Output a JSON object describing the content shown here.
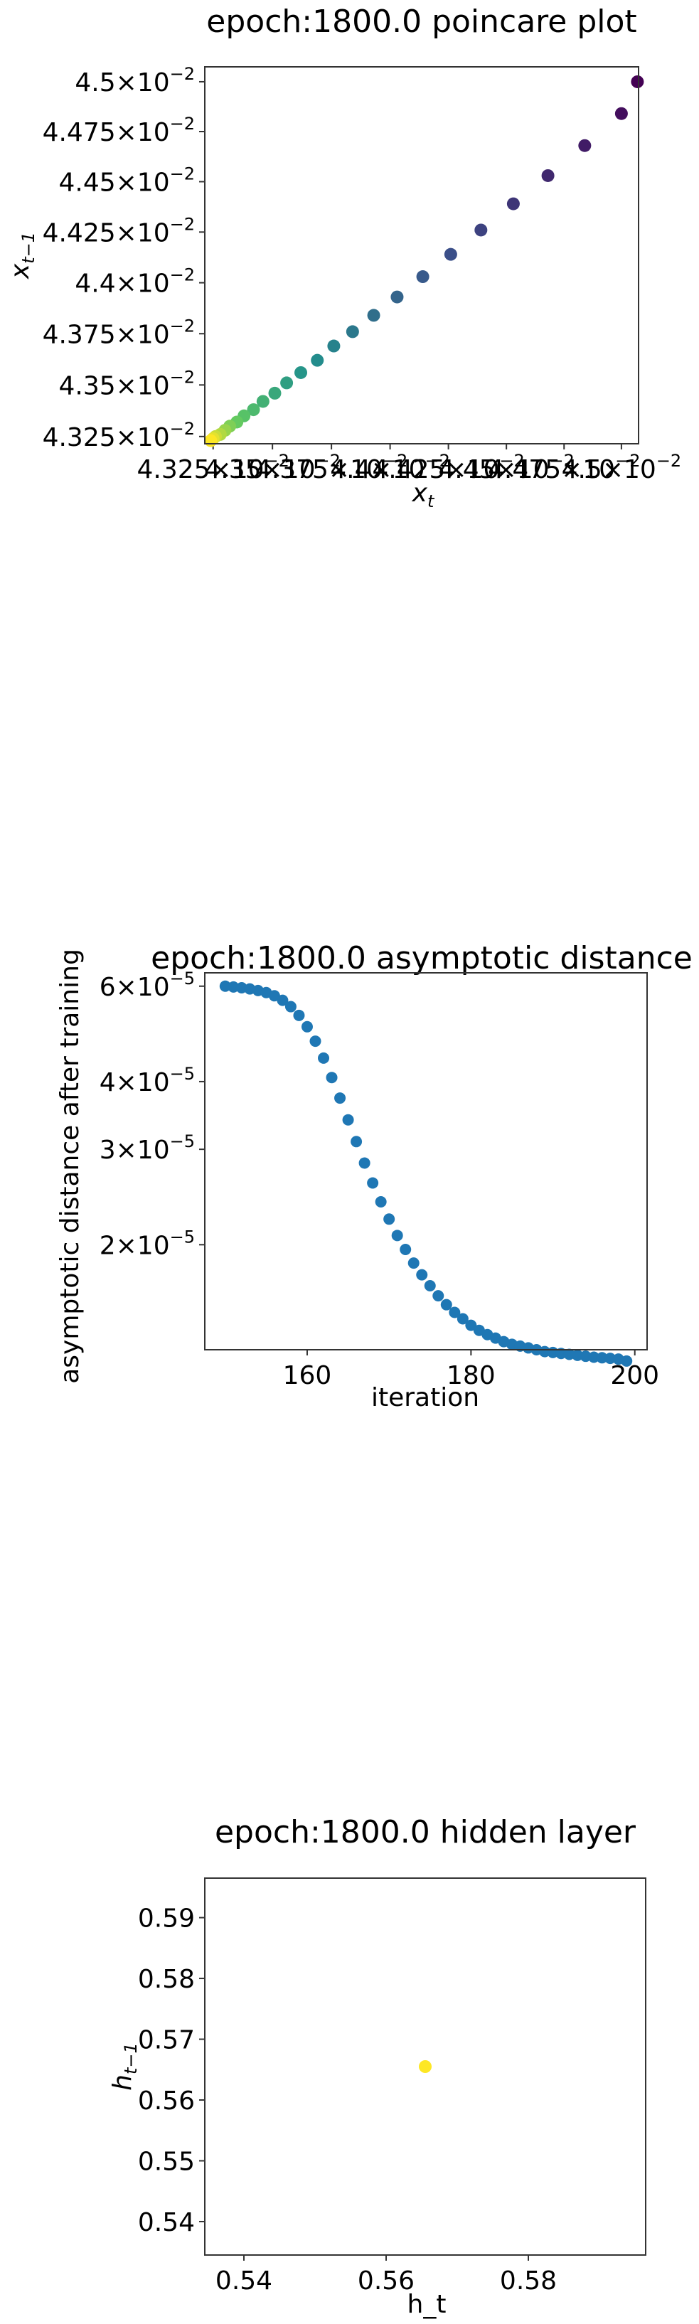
{
  "chart_data": [
    {
      "type": "scatter",
      "title": "epoch:1800.0 poincare plot",
      "xlabel": "x_t",
      "ylabel": "x_{t−1}",
      "scale": "log",
      "xlim": [
        0.043215,
        0.045075
      ],
      "ylim": [
        0.043215,
        0.045075
      ],
      "xticks": [
        {
          "value": 0.04325,
          "mantissa": "4.325",
          "exp": "−2"
        },
        {
          "value": 0.0435,
          "mantissa": "4.35",
          "exp": "−2"
        },
        {
          "value": 0.04375,
          "mantissa": "4.375",
          "exp": "−2"
        },
        {
          "value": 0.044,
          "mantissa": "4.4",
          "exp": "−2"
        },
        {
          "value": 0.04425,
          "mantissa": "4.425",
          "exp": "−2"
        },
        {
          "value": 0.0445,
          "mantissa": "4.45",
          "exp": "−2"
        },
        {
          "value": 0.04475,
          "mantissa": "4.475",
          "exp": "−2"
        },
        {
          "value": 0.045,
          "mantissa": "4.5",
          "exp": "−2"
        }
      ],
      "yticks": [
        {
          "value": 0.04325,
          "mantissa": "4.325",
          "exp": "−2"
        },
        {
          "value": 0.0435,
          "mantissa": "4.35",
          "exp": "−2"
        },
        {
          "value": 0.04375,
          "mantissa": "4.375",
          "exp": "−2"
        },
        {
          "value": 0.044,
          "mantissa": "4.4",
          "exp": "−2"
        },
        {
          "value": 0.04425,
          "mantissa": "4.425",
          "exp": "−2"
        },
        {
          "value": 0.0445,
          "mantissa": "4.45",
          "exp": "−2"
        },
        {
          "value": 0.04475,
          "mantissa": "4.475",
          "exp": "−2"
        },
        {
          "value": 0.045,
          "mantissa": "4.5",
          "exp": "−2"
        }
      ],
      "colormap": [
        "#440154",
        "#3b528b",
        "#21918c",
        "#5ec962",
        "#fde725"
      ],
      "points": [
        [
          0.04507,
          0.045
        ],
        [
          0.045,
          0.04484
        ],
        [
          0.04484,
          0.04468
        ],
        [
          0.04468,
          0.04453
        ],
        [
          0.04453,
          0.04439
        ],
        [
          0.04439,
          0.04426
        ],
        [
          0.04426,
          0.04414
        ],
        [
          0.04414,
          0.04403
        ],
        [
          0.04403,
          0.04393
        ],
        [
          0.04393,
          0.04384
        ],
        [
          0.04384,
          0.04376
        ],
        [
          0.04376,
          0.04369
        ],
        [
          0.04369,
          0.04362
        ],
        [
          0.04362,
          0.04356
        ],
        [
          0.04356,
          0.04351
        ],
        [
          0.04351,
          0.04346
        ],
        [
          0.04346,
          0.04342
        ],
        [
          0.04342,
          0.04338
        ],
        [
          0.04338,
          0.04335
        ],
        [
          0.04335,
          0.04332
        ],
        [
          0.04332,
          0.0433
        ],
        [
          0.0433,
          0.04328
        ],
        [
          0.04328,
          0.04326
        ],
        [
          0.04326,
          0.04325
        ],
        [
          0.04325,
          0.04324
        ],
        [
          0.04324,
          0.04323
        ]
      ]
    },
    {
      "type": "scatter",
      "title": "epoch:1800.0 asymptotic distance",
      "xlabel": "iteration",
      "ylabel": "asymptotic distance after training",
      "scale": "log-y",
      "xlim": [
        147.5,
        201.5
      ],
      "ylim": [
        1.28e-05,
        6.35e-05
      ],
      "xticks": [
        {
          "value": 160,
          "label": "160"
        },
        {
          "value": 180,
          "label": "180"
        },
        {
          "value": 200,
          "label": "200"
        }
      ],
      "yticks": [
        {
          "value": 6e-05,
          "mantissa": "6",
          "exp": "−5"
        },
        {
          "value": 4e-05,
          "mantissa": "4",
          "exp": "−5"
        },
        {
          "value": 3e-05,
          "mantissa": "3",
          "exp": "−5"
        },
        {
          "value": 2e-05,
          "mantissa": "2",
          "exp": "−5"
        }
      ],
      "color": "#1f77b4",
      "x": [
        150,
        151,
        152,
        153,
        154,
        155,
        156,
        157,
        158,
        159,
        160,
        161,
        162,
        163,
        164,
        165,
        166,
        167,
        168,
        169,
        170,
        171,
        172,
        173,
        174,
        175,
        176,
        177,
        178,
        179,
        180,
        181,
        182,
        183,
        184,
        185,
        186,
        187,
        188,
        189,
        190,
        191,
        192,
        193,
        194,
        195,
        196,
        197,
        198,
        199
      ],
      "y": [
        6e-05,
        5.98e-05,
        5.96e-05,
        5.93e-05,
        5.89e-05,
        5.84e-05,
        5.76e-05,
        5.65e-05,
        5.5e-05,
        5.3e-05,
        5.05e-05,
        4.75e-05,
        4.42e-05,
        4.07e-05,
        3.73e-05,
        3.4e-05,
        3.1e-05,
        2.83e-05,
        2.6e-05,
        2.4e-05,
        2.23e-05,
        2.08e-05,
        1.96e-05,
        1.85e-05,
        1.76e-05,
        1.68e-05,
        1.61e-05,
        1.55e-05,
        1.5e-05,
        1.46e-05,
        1.42e-05,
        1.39e-05,
        1.365e-05,
        1.345e-05,
        1.325e-05,
        1.31e-05,
        1.3e-05,
        1.29e-05,
        1.28e-05,
        1.27e-05,
        1.265e-05,
        1.26e-05,
        1.255e-05,
        1.25e-05,
        1.245e-05,
        1.24e-05,
        1.237e-05,
        1.234e-05,
        1.23e-05,
        1.22e-05
      ]
    },
    {
      "type": "scatter",
      "title": "epoch:1800.0 hidden layer",
      "xlabel": "h_t",
      "ylabel": "h_{t−1}",
      "xlim": [
        0.5345,
        0.5965
      ],
      "ylim": [
        0.5345,
        0.5965
      ],
      "xticks": [
        {
          "value": 0.54,
          "label": "0.54"
        },
        {
          "value": 0.56,
          "label": "0.56"
        },
        {
          "value": 0.58,
          "label": "0.58"
        }
      ],
      "yticks": [
        {
          "value": 0.59,
          "label": "0.59"
        },
        {
          "value": 0.58,
          "label": "0.58"
        },
        {
          "value": 0.57,
          "label": "0.57"
        },
        {
          "value": 0.56,
          "label": "0.56"
        },
        {
          "value": 0.55,
          "label": "0.55"
        },
        {
          "value": 0.54,
          "label": "0.54"
        }
      ],
      "color": "#fde725",
      "points": [
        [
          0.5655,
          0.5655
        ]
      ]
    }
  ]
}
